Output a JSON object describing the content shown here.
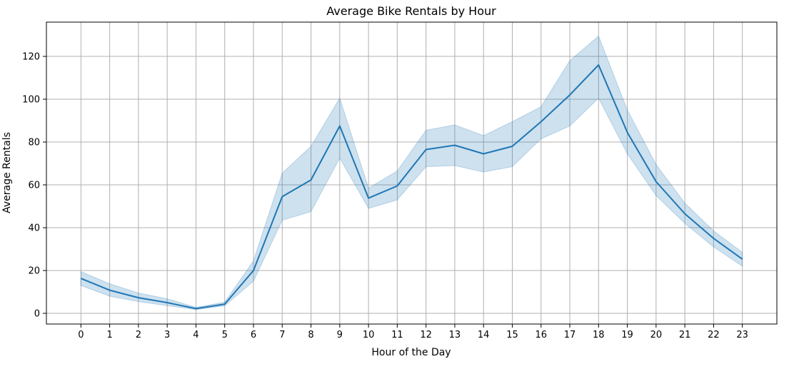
{
  "chart_data": {
    "type": "line",
    "title": "Average Bike Rentals by Hour",
    "xlabel": "Hour of the Day",
    "ylabel": "Average Rentals",
    "x": [
      0,
      1,
      2,
      3,
      4,
      5,
      6,
      7,
      8,
      9,
      10,
      11,
      12,
      13,
      14,
      15,
      16,
      17,
      18,
      19,
      20,
      21,
      22,
      23
    ],
    "x_tick_labels": [
      "0",
      "1",
      "2",
      "3",
      "4",
      "5",
      "6",
      "7",
      "8",
      "9",
      "10",
      "11",
      "12",
      "13",
      "14",
      "15",
      "16",
      "17",
      "18",
      "19",
      "20",
      "21",
      "22",
      "23"
    ],
    "y_ticks": [
      0,
      20,
      40,
      60,
      80,
      100,
      120
    ],
    "y_tick_labels": [
      "0",
      "20",
      "40",
      "60",
      "80",
      "100",
      "120"
    ],
    "xlim": [
      -1.2,
      24.2
    ],
    "ylim": [
      -5,
      136
    ],
    "grid": true,
    "series": [
      {
        "values": [
          16.3,
          10.8,
          7.3,
          5.0,
          2.2,
          4.3,
          20.0,
          54.5,
          62.3,
          87.5,
          53.8,
          59.5,
          76.5,
          78.5,
          74.5,
          78.0,
          89.5,
          102.0,
          116.0,
          84.5,
          61.5,
          46.5,
          35.0,
          25.3
        ],
        "ci_lower": [
          13.0,
          8.0,
          5.5,
          3.6,
          1.7,
          3.5,
          15.0,
          43.5,
          47.5,
          72.5,
          49.0,
          53.0,
          68.5,
          69.0,
          66.0,
          68.5,
          81.5,
          87.5,
          100.5,
          74.5,
          55.0,
          42.0,
          31.0,
          22.0
        ],
        "ci_upper": [
          19.5,
          13.8,
          9.5,
          6.8,
          2.8,
          5.2,
          24.5,
          65.5,
          78.0,
          100.5,
          58.5,
          66.5,
          85.5,
          88.0,
          83.0,
          89.5,
          96.5,
          118.0,
          129.5,
          95.0,
          69.5,
          51.5,
          38.5,
          28.5
        ],
        "color": "#1f77b4"
      }
    ]
  }
}
